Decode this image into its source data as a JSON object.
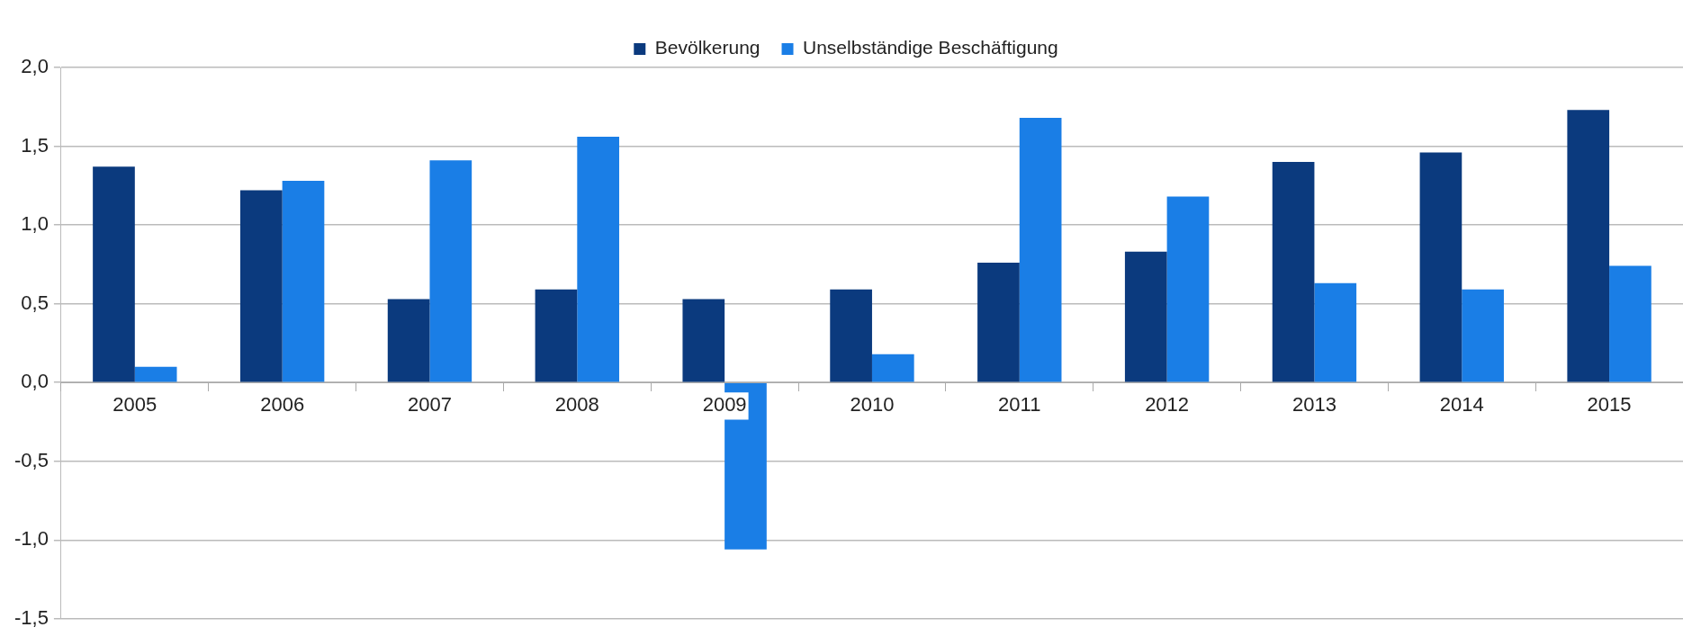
{
  "chart_data": {
    "type": "bar",
    "categories": [
      "2005",
      "2006",
      "2007",
      "2008",
      "2009",
      "2010",
      "2011",
      "2012",
      "2013",
      "2014",
      "2015"
    ],
    "series": [
      {
        "name": "Bevölkerung",
        "color": "#0b3a7e",
        "values": [
          1.37,
          1.22,
          0.53,
          0.59,
          0.53,
          0.59,
          0.76,
          0.83,
          1.4,
          1.46,
          1.73
        ]
      },
      {
        "name": "Unselbständige Beschäftigung",
        "color": "#1a7ee6",
        "values": [
          0.1,
          1.28,
          1.41,
          1.56,
          -1.06,
          0.18,
          1.68,
          1.18,
          0.63,
          0.59,
          0.74
        ]
      }
    ],
    "ylim": [
      -1.5,
      2.0
    ],
    "yticks": [
      {
        "value": -1.5,
        "label": "-1,5"
      },
      {
        "value": -1.0,
        "label": "-1,0"
      },
      {
        "value": -0.5,
        "label": "-0,5"
      },
      {
        "value": 0,
        "label": "0,0"
      },
      {
        "value": 0.5,
        "label": "0,5"
      },
      {
        "value": 1.0,
        "label": "1,0"
      },
      {
        "value": 1.5,
        "label": "1,5"
      },
      {
        "value": 2.0,
        "label": "2,0"
      }
    ],
    "grid": "y",
    "legend": "top"
  }
}
